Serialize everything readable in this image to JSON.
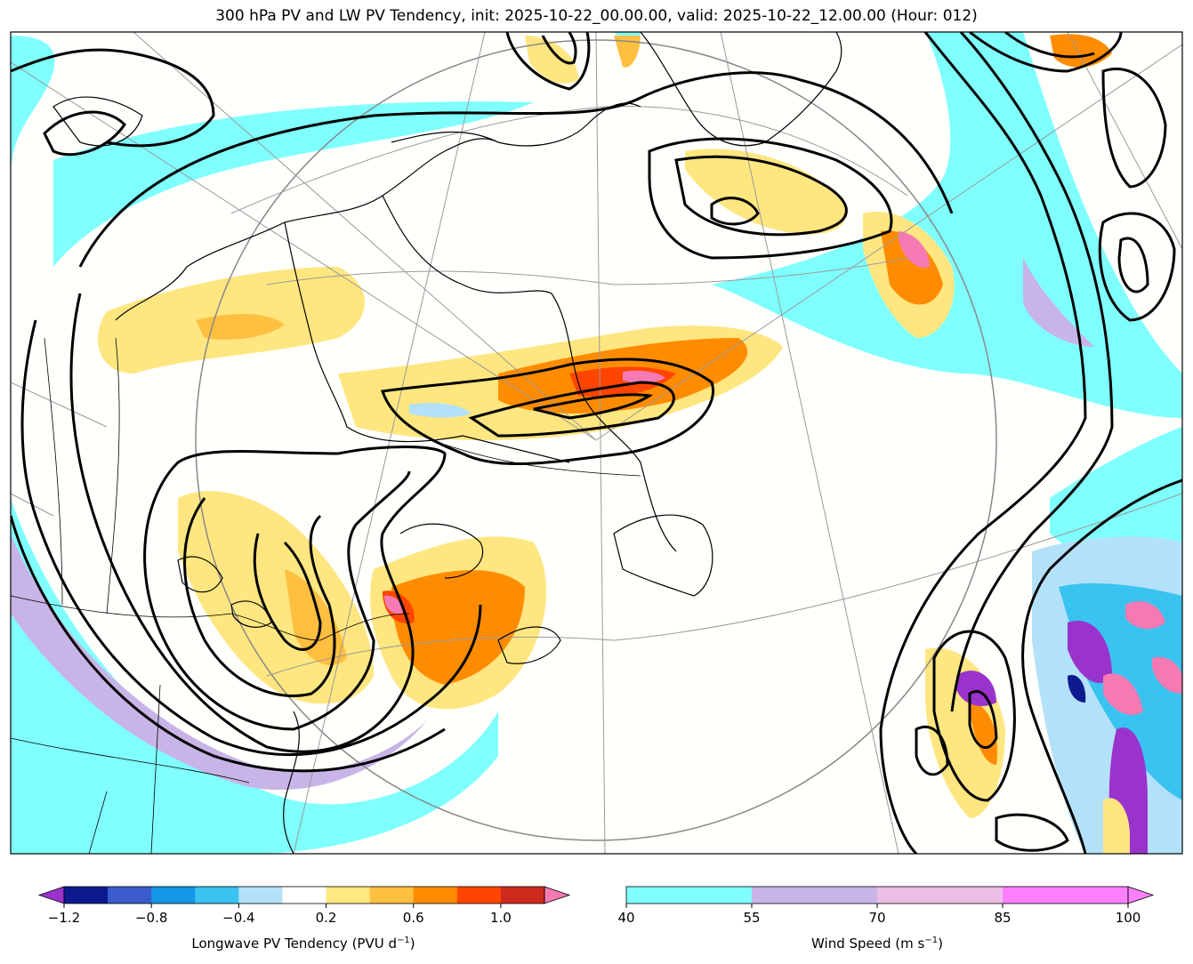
{
  "title": "300 hPa PV and LW PV Tendency, init: 2025-10-22_00.00.00, valid: 2025-10-22_12.00.00 (Hour: 012)",
  "chart_data": [
    {
      "type": "heatmap",
      "name": "Longwave PV Tendency",
      "colorbar_label": "Longwave PV Tendency (PVU d",
      "colorbar_label_sup": "−1",
      "colorbar_label_end": ")",
      "levels": [
        -1.2,
        -1.0,
        -0.8,
        -0.6,
        -0.4,
        -0.2,
        0.2,
        0.4,
        0.6,
        0.8,
        1.0,
        1.2
      ],
      "colors": [
        "#0d1a8f",
        "#3a5ccc",
        "#1496e6",
        "#39c3f0",
        "#b4e1fa",
        "#ffffff",
        "#ffe680",
        "#ffbf40",
        "#ff8c00",
        "#ff4500",
        "#cc2a1c"
      ],
      "extend_colors": [
        "#9933cc",
        "#f57ab4"
      ],
      "tick_values": [
        -1.2,
        -0.8,
        -0.4,
        0.2,
        0.6,
        1.0
      ],
      "tick_labels": [
        "−1.2",
        "−0.8",
        "−0.4",
        "0.2",
        "0.6",
        "1.0"
      ]
    },
    {
      "type": "heatmap",
      "name": "Wind Speed",
      "colorbar_label": "Wind Speed (m s",
      "colorbar_label_sup": "−1",
      "colorbar_label_end": ")",
      "levels": [
        40,
        55,
        70,
        85,
        100
      ],
      "colors": [
        "#80ffff",
        "#c8b4e6",
        "#ebbee6",
        "#ff80ff"
      ],
      "extend_colors": [
        "#ff80ff"
      ],
      "tick_values": [
        40,
        55,
        70,
        85,
        100
      ],
      "tick_labels": [
        "40",
        "55",
        "70",
        "85",
        "100"
      ]
    }
  ]
}
